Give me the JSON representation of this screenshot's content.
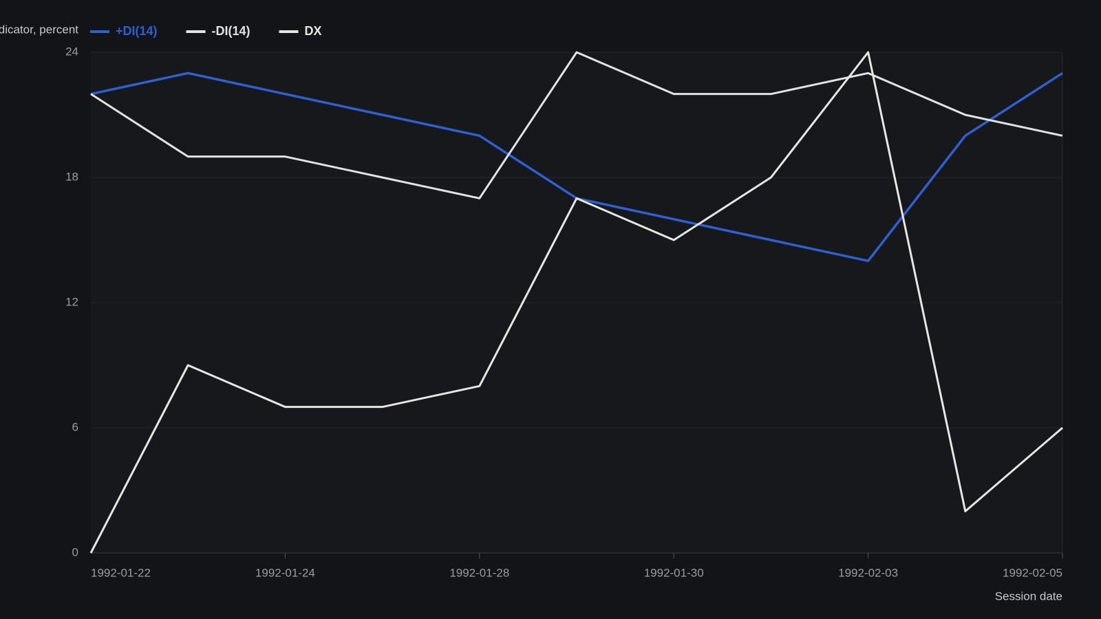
{
  "chart_data": {
    "type": "line",
    "y_label": "Indicator, percent",
    "x_label": "Session date",
    "categories": [
      "1992-01-22",
      null,
      "1992-01-24",
      null,
      "1992-01-28",
      null,
      "1992-01-30",
      null,
      "1992-02-03",
      null,
      "1992-02-05"
    ],
    "series": [
      {
        "name": "+DI(14)",
        "color": "#2f5fd0",
        "values": [
          22,
          23,
          22,
          21,
          20,
          17,
          16,
          15,
          14,
          20,
          23
        ]
      },
      {
        "name": "-DI(14)",
        "color": "#e2e2e2",
        "values": [
          22,
          19,
          19,
          18,
          17,
          24,
          22,
          22,
          23,
          21,
          20
        ]
      },
      {
        "name": "DX",
        "color": "#e8e6e3",
        "values": [
          0,
          9,
          7,
          7,
          8,
          17,
          15,
          18,
          24,
          2,
          6
        ]
      }
    ],
    "ylim": [
      0,
      24
    ],
    "yticks": [
      0,
      6,
      12,
      18,
      24
    ],
    "grid": true
  }
}
